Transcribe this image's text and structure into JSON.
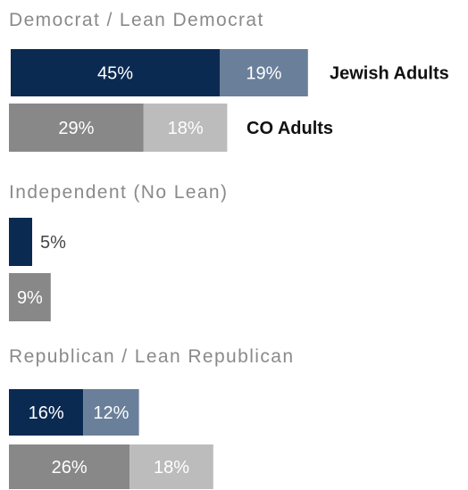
{
  "chart_data": {
    "type": "bar",
    "orientation": "horizontal",
    "stacked": true,
    "series_labels": [
      "Jewish Adults",
      "CO Adults"
    ],
    "groups": [
      {
        "label": "Democrat / Lean Democrat",
        "rows": [
          {
            "series": "Jewish Adults",
            "segments": [
              45,
              19
            ],
            "labels": [
              "45%",
              "19%"
            ]
          },
          {
            "series": "CO Adults",
            "segments": [
              29,
              18
            ],
            "labels": [
              "29%",
              "18%"
            ]
          }
        ]
      },
      {
        "label": "Independent (No Lean)",
        "rows": [
          {
            "series": "Jewish Adults",
            "segments": [
              5
            ],
            "labels": [
              "5%"
            ]
          },
          {
            "series": "CO Adults",
            "segments": [
              9
            ],
            "labels": [
              "9%"
            ]
          }
        ]
      },
      {
        "label": "Republican / Lean Republican",
        "rows": [
          {
            "series": "Jewish Adults",
            "segments": [
              16,
              12
            ],
            "labels": [
              "16%",
              "12%"
            ]
          },
          {
            "series": "CO Adults",
            "segments": [
              26,
              18
            ],
            "labels": [
              "26%",
              "18%"
            ]
          }
        ]
      }
    ],
    "colors": {
      "Jewish Adults": [
        "#0b2a52",
        "#6a7f9a"
      ],
      "CO Adults": [
        "#888888",
        "#bcbcbc"
      ]
    }
  }
}
